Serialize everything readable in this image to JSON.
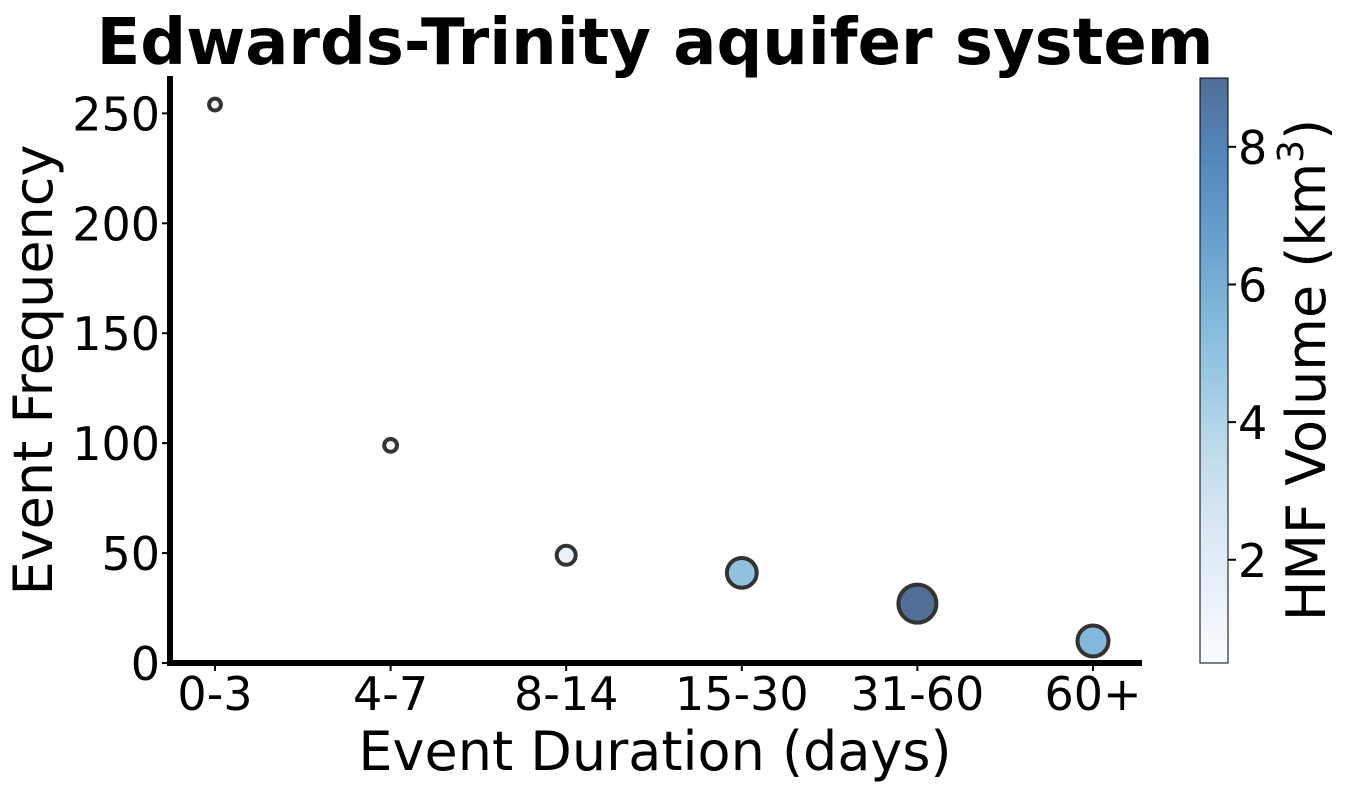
{
  "chart_data": {
    "type": "scatter",
    "title": "Edwards-Trinity aquifer system",
    "xlabel": "Event Duration (days)",
    "ylabel": "Event Frequency",
    "categories": [
      "0-3",
      "4-7",
      "8-14",
      "15-30",
      "31-60",
      "60+"
    ],
    "frequency": [
      254,
      99,
      49,
      41,
      27,
      10
    ],
    "hmf_volume_km3": [
      0.3,
      0.4,
      1.5,
      5.0,
      9.0,
      5.5
    ],
    "ylim": [
      0,
      267
    ],
    "yticks": [
      0,
      50,
      100,
      150,
      200,
      250
    ],
    "grid": false,
    "colorbar": {
      "label_prefix": "HMF Volume (km",
      "label_sup": "3",
      "label_suffix": ")",
      "range": [
        0.5,
        9.0
      ],
      "ticks": [
        2,
        4,
        6,
        8
      ],
      "colormap": "Blues",
      "alpha": 0.7
    },
    "marker_edge_color": "#333333"
  }
}
